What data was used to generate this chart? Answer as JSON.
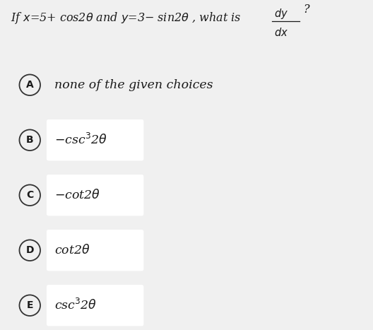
{
  "background_color": "#f0f0f0",
  "choice_box_color": "#f0f0f0",
  "choice_inner_box_color": "#ffffff",
  "circle_facecolor": "#f0f0f0",
  "circle_edgecolor": "#333333",
  "text_color": "#1a1a1a",
  "question": "If x=5+ cos2θ and y=3– sin2θ , what is",
  "dy": "dy",
  "dx": "dx",
  "choices": [
    {
      "label": "A",
      "display": "none of the given choices",
      "has_inner_box": false
    },
    {
      "label": "B",
      "display": "−csc³2θ",
      "has_inner_box": true
    },
    {
      "label": "C",
      "display": "−cot2θ",
      "has_inner_box": true
    },
    {
      "label": "D",
      "display": "cot2θ",
      "has_inner_box": true
    },
    {
      "label": "E",
      "display": "csc³2θ",
      "has_inner_box": true
    }
  ],
  "fig_width": 5.28,
  "fig_height": 4.67,
  "dpi": 100
}
